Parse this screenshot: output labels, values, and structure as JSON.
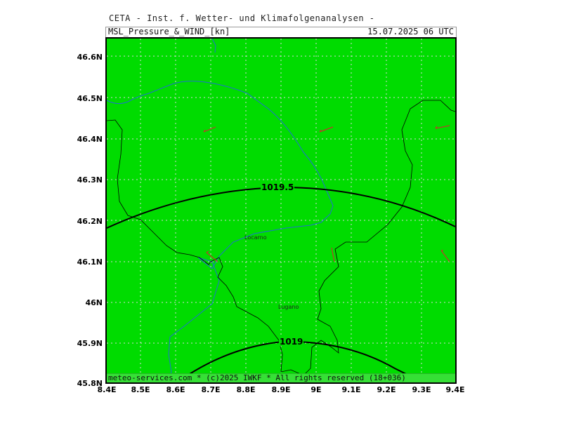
{
  "header": {
    "org": "CETA - Inst. f. Wetter- und Klimafolgenanalysen -",
    "title": "MSL_Pressure_&_WIND_[kn]",
    "datetime": "15.07.2025 06 UTC"
  },
  "footer": {
    "text": "meteo-services.com * (c)2025 IWKF * All rights reserved (18+036)"
  },
  "axes": {
    "lat_ticks": [
      "46.6N",
      "46.5N",
      "46.4N",
      "46.3N",
      "46.2N",
      "46.1N",
      "46N",
      "45.9N",
      "45.8N"
    ],
    "lon_ticks": [
      "8.4E",
      "8.5E",
      "8.6E",
      "8.7E",
      "8.8E",
      "8.9E",
      "9E",
      "9.1E",
      "9.2E",
      "9.3E",
      "9.4E"
    ]
  },
  "cities": [
    {
      "name": "Locarno"
    },
    {
      "name": "Lugano"
    }
  ],
  "isobars": [
    {
      "label": "1019.5"
    },
    {
      "label": "1019"
    }
  ],
  "colors": {
    "land": "#00dc00",
    "footer": "#36e036",
    "lake": "#1f6fd0",
    "border": "#000000",
    "isobar": "#000000",
    "wind_barb": "#c0392b",
    "grid": "#d8d8d8"
  }
}
